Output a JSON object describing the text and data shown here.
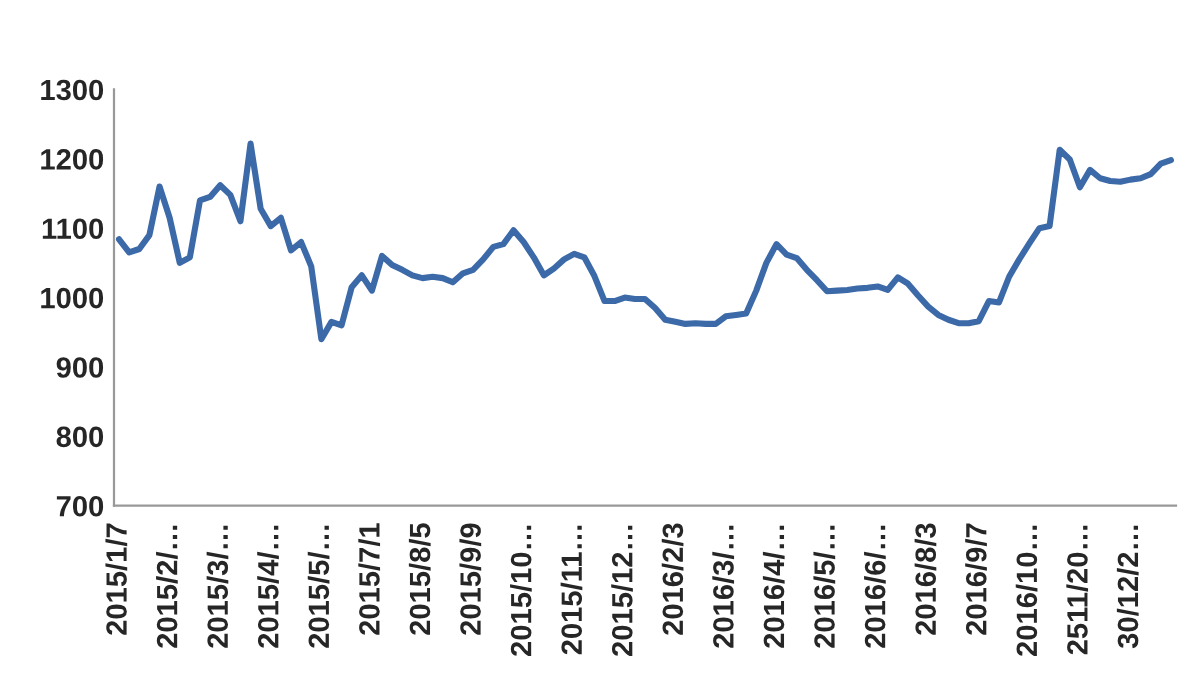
{
  "chart_data": {
    "type": "line",
    "categories": [
      "2015/1/7",
      null,
      null,
      null,
      null,
      "2015/2/…",
      null,
      null,
      null,
      null,
      "2015/3/…",
      null,
      null,
      null,
      null,
      "2015/4/…",
      null,
      null,
      null,
      null,
      "2015/5/…",
      null,
      null,
      null,
      null,
      "2015/7/1",
      null,
      null,
      null,
      null,
      "2015/8/5",
      null,
      null,
      null,
      null,
      "2015/9/9",
      null,
      null,
      null,
      null,
      "2015/10…",
      null,
      null,
      null,
      null,
      "2015/11…",
      null,
      null,
      null,
      null,
      "2015/12…",
      null,
      null,
      null,
      null,
      "2016/2/3",
      null,
      null,
      null,
      null,
      "2016/3/…",
      null,
      null,
      null,
      null,
      "2016/4/…",
      null,
      null,
      null,
      null,
      "2016/5/…",
      null,
      null,
      null,
      null,
      "2016/6/…",
      null,
      null,
      null,
      null,
      "2016/8/3",
      null,
      null,
      null,
      null,
      "2016/9/7",
      null,
      null,
      null,
      null,
      "2016/10…",
      null,
      null,
      null,
      null,
      "2511/20…",
      null,
      null,
      null,
      null,
      "30/12/2…",
      null,
      null,
      null,
      null
    ],
    "series": [
      {
        "color": "#3c6aa8",
        "values": [
          1084,
          1065,
          1070,
          1090,
          1160,
          1115,
          1050,
          1058,
          1140,
          1145,
          1162,
          1148,
          1110,
          1222,
          1128,
          1103,
          1115,
          1068,
          1080,
          1045,
          940,
          965,
          960,
          1015,
          1032,
          1010,
          1060,
          1047,
          1040,
          1032,
          1028,
          1030,
          1028,
          1022,
          1035,
          1040,
          1055,
          1073,
          1077,
          1097,
          1080,
          1058,
          1032,
          1042,
          1055,
          1063,
          1058,
          1031,
          995,
          995,
          1000,
          998,
          998,
          985,
          968,
          965,
          962,
          963,
          962,
          962,
          973,
          975,
          977,
          1010,
          1050,
          1077,
          1062,
          1057,
          1040,
          1025,
          1009,
          1010,
          1011,
          1013,
          1014,
          1016,
          1011,
          1029,
          1020,
          1003,
          987,
          975,
          968,
          963,
          963,
          966,
          995,
          993,
          1030,
          1055,
          1078,
          1100,
          1103,
          1213,
          1199,
          1159,
          1184,
          1172,
          1168,
          1167,
          1170,
          1172,
          1178,
          1193,
          1198
        ]
      }
    ],
    "ylim": [
      700,
      1300
    ],
    "yticks": [
      700,
      800,
      900,
      1000,
      1100,
      1200,
      1300
    ],
    "grid": false,
    "legend": false,
    "marker": "none",
    "line_style": "solid"
  }
}
